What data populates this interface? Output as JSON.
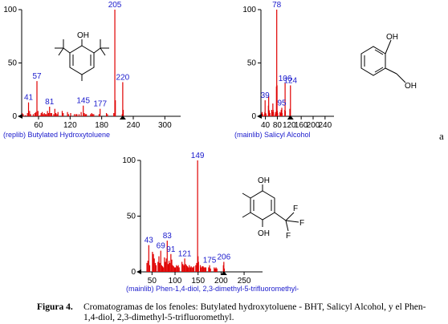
{
  "chart_data": [
    {
      "type": "bar",
      "xlim": [
        28,
        330
      ],
      "ylim": [
        0,
        100
      ],
      "xticks": [
        60,
        120,
        180,
        240,
        300
      ],
      "yticks": [
        0,
        50,
        100
      ],
      "library_label": "(replib) Butylated Hydroxytoluene",
      "peak_labels": [
        41,
        57,
        81,
        145,
        177,
        205,
        220
      ],
      "series": [
        {
          "x": [
            29,
            31,
            35,
            39,
            41,
            43,
            45,
            50,
            53,
            55,
            57,
            59,
            63,
            65,
            67,
            69,
            71,
            73,
            75,
            77,
            79,
            81,
            83,
            85,
            89,
            91,
            93,
            95,
            97,
            105,
            107,
            115,
            117,
            121,
            128,
            131,
            133,
            137,
            141,
            145,
            147,
            149,
            151,
            159,
            161,
            163,
            165,
            175,
            177,
            189,
            191,
            203,
            205,
            206,
            219,
            220,
            221
          ],
          "y": [
            3,
            2,
            1,
            3,
            13,
            5,
            2,
            2,
            3,
            4,
            33,
            5,
            1,
            3,
            4,
            2,
            3,
            2,
            2,
            5,
            3,
            9,
            3,
            3,
            2,
            7,
            3,
            2,
            4,
            5,
            3,
            4,
            2,
            3,
            2,
            2,
            2,
            2,
            4,
            10,
            3,
            2,
            2,
            2,
            3,
            2,
            2,
            2,
            7,
            3,
            2,
            3,
            100,
            15,
            2,
            32,
            6
          ]
        }
      ]
    },
    {
      "type": "bar",
      "xlim": [
        25,
        270
      ],
      "ylim": [
        0,
        100
      ],
      "xticks": [
        40,
        80,
        120,
        160,
        200,
        240
      ],
      "yticks": [
        0,
        50,
        100
      ],
      "library_label": "(mainlib) Salicyl Alcohol",
      "peak_labels": [
        39,
        78,
        95,
        106,
        124
      ],
      "series": [
        {
          "x": [
            27,
            29,
            31,
            37,
            38,
            39,
            40,
            41,
            42,
            50,
            51,
            52,
            53,
            55,
            61,
            62,
            63,
            64,
            65,
            66,
            67,
            73,
            74,
            77,
            78,
            79,
            80,
            81,
            89,
            90,
            91,
            92,
            93,
            94,
            95,
            96,
            105,
            106,
            107,
            122,
            123,
            124
          ],
          "y": [
            3,
            4,
            2,
            2,
            4,
            15,
            2,
            3,
            2,
            10,
            19,
            6,
            5,
            3,
            6,
            3,
            4,
            3,
            12,
            6,
            4,
            2,
            4,
            28,
            100,
            29,
            5,
            3,
            4,
            3,
            2,
            2,
            6,
            5,
            8,
            3,
            6,
            31,
            5,
            7,
            4,
            29
          ]
        }
      ]
    },
    {
      "type": "bar",
      "xlim": [
        25,
        290
      ],
      "ylim": [
        0,
        100
      ],
      "xticks": [
        50,
        100,
        150,
        200,
        250
      ],
      "yticks": [
        0,
        50,
        100
      ],
      "library_label": "(mainlib) Phen-1,4-diol, 2,3-dimethyl-5-trifluoromethyl-",
      "peak_labels": [
        43,
        69,
        83,
        91,
        121,
        149,
        175,
        206
      ],
      "series": [
        {
          "x": [
            39,
            41,
            43,
            45,
            51,
            53,
            55,
            57,
            59,
            63,
            65,
            67,
            69,
            71,
            73,
            75,
            77,
            79,
            81,
            83,
            85,
            87,
            89,
            91,
            93,
            95,
            97,
            99,
            101,
            103,
            105,
            107,
            109,
            115,
            117,
            119,
            121,
            123,
            125,
            127,
            129,
            131,
            133,
            135,
            137,
            139,
            141,
            145,
            147,
            149,
            150,
            151,
            155,
            157,
            159,
            161,
            163,
            165,
            167,
            173,
            175,
            177,
            185,
            187,
            189,
            191,
            205,
            206,
            207
          ],
          "y": [
            8,
            10,
            24,
            6,
            18,
            16,
            12,
            8,
            6,
            9,
            14,
            8,
            19,
            6,
            5,
            4,
            13,
            9,
            12,
            28,
            7,
            10,
            8,
            16,
            11,
            6,
            5,
            4,
            4,
            6,
            5,
            6,
            4,
            9,
            7,
            6,
            12,
            7,
            6,
            5,
            4,
            6,
            4,
            5,
            4,
            4,
            5,
            6,
            8,
            100,
            14,
            9,
            6,
            4,
            5,
            5,
            4,
            4,
            4,
            4,
            6,
            3,
            4,
            3,
            4,
            3,
            6,
            9,
            3
          ]
        }
      ]
    }
  ],
  "structure_labels": {
    "bht": {
      "oh": "OH"
    },
    "salicyl": {
      "oh1": "OH",
      "oh2": "OH"
    },
    "phen": {
      "oh1": "OH",
      "oh2": "OH",
      "f1": "F",
      "f2": "F",
      "f3": "F"
    }
  },
  "panel_letter": "a",
  "caption": {
    "label": "Figura 4.",
    "text": "Cromatogramas de los fenoles: Butylated hydroxytoluene - BHT, Salicyl Alcohol, y el Phen-1,4-diol, 2,3-dimethyl-5-trifluoromethyl."
  }
}
